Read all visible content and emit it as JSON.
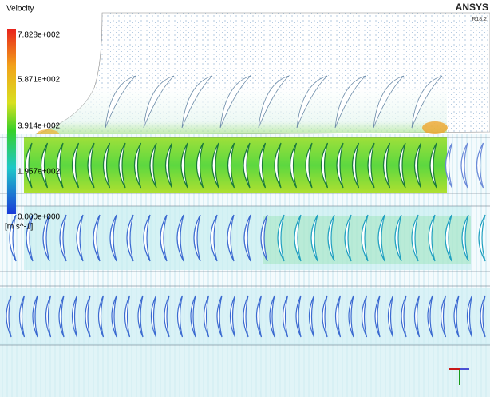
{
  "legend": {
    "title": "Velocity",
    "labels": [
      "7.828e+002",
      "5.871e+002",
      "3.914e+002",
      "1.957e+002",
      "0.000e+000"
    ],
    "unit": "[m s^-1]"
  },
  "logo": {
    "name": "ANSYS",
    "version": "R18.2"
  }
}
